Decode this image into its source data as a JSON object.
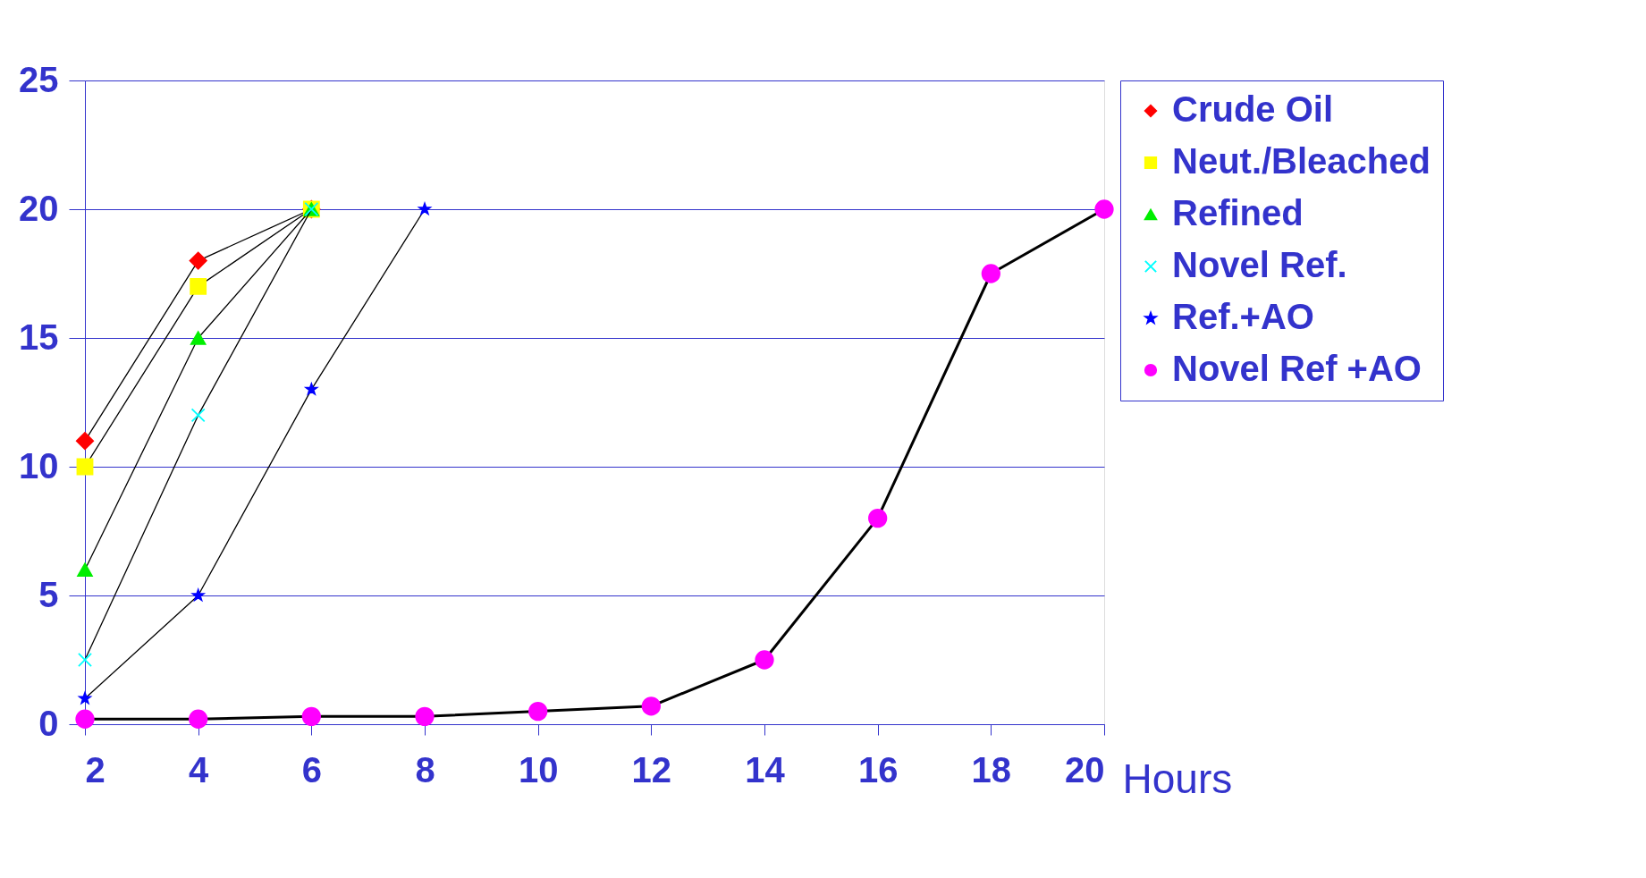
{
  "chart_data": {
    "type": "line",
    "xlabel": "Hours",
    "x": [
      2,
      4,
      6,
      8,
      10,
      12,
      14,
      16,
      18,
      20
    ],
    "series": [
      {
        "name": "Crude Oil",
        "color": "#ff0000",
        "marker": "diamond",
        "values": [
          11,
          18,
          20,
          null,
          null,
          null,
          null,
          null,
          null,
          null
        ]
      },
      {
        "name": "Neut./Bleached",
        "color": "#ffff00",
        "marker": "square",
        "values": [
          10,
          17,
          20,
          null,
          null,
          null,
          null,
          null,
          null,
          null
        ]
      },
      {
        "name": "Refined",
        "color": "#00ee00",
        "marker": "triangle",
        "values": [
          6,
          15,
          20,
          null,
          null,
          null,
          null,
          null,
          null,
          null
        ]
      },
      {
        "name": "Novel Ref.",
        "color": "#00ffff",
        "marker": "cross",
        "values": [
          2.5,
          12,
          20,
          null,
          null,
          null,
          null,
          null,
          null,
          null
        ]
      },
      {
        "name": "Ref.+AO",
        "color": "#0000ff",
        "marker": "star",
        "values": [
          1,
          5,
          13,
          20,
          null,
          null,
          null,
          null,
          null,
          null
        ]
      },
      {
        "name": "Novel Ref +AO",
        "color": "#ff00ff",
        "marker": "circle",
        "values": [
          0.2,
          0.2,
          0.3,
          0.3,
          0.5,
          0.7,
          2.5,
          8,
          17.5,
          20
        ]
      }
    ],
    "xlim": [
      2,
      20
    ],
    "xticks": [
      2,
      4,
      6,
      8,
      10,
      12,
      14,
      16,
      18,
      20
    ],
    "ylim": [
      0,
      25
    ],
    "yticks": [
      0,
      5,
      10,
      15,
      20,
      25
    ],
    "grid": "y",
    "legend": "right",
    "line_style": "solid"
  }
}
